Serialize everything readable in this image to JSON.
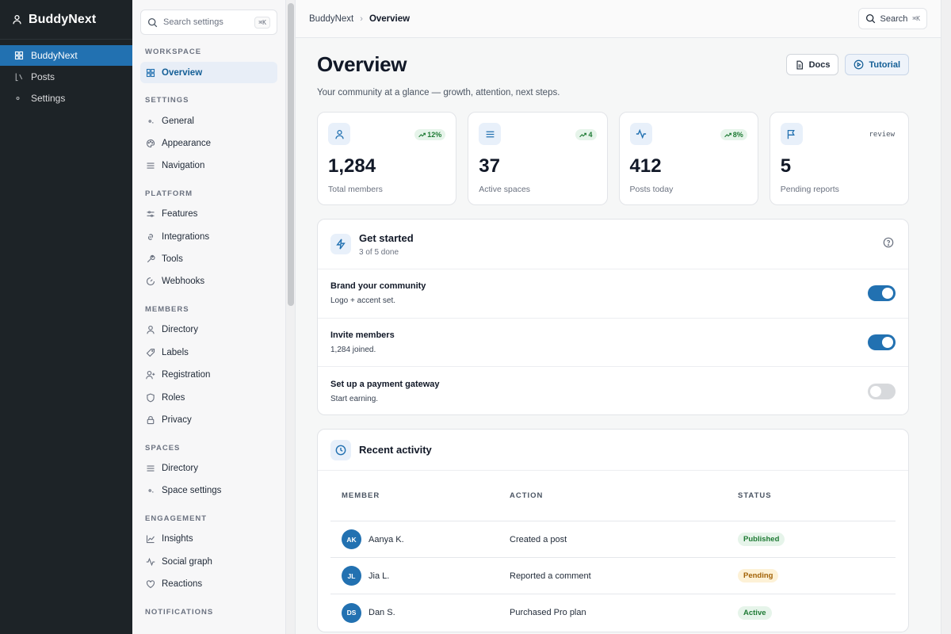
{
  "adminbar": {
    "brand": "BuddyNext",
    "items": [
      {
        "label": "BuddyNext",
        "icon": "grid-icon"
      },
      {
        "label": "Posts",
        "icon": "bracket-icon"
      },
      {
        "label": "Settings",
        "icon": "dot-icon"
      }
    ]
  },
  "settings": {
    "search_placeholder": "Search settings",
    "search_kbd": "⌘K",
    "sections": {
      "workspace": "WORKSPACE",
      "settings": "SETTINGS",
      "platform": "PLATFORM",
      "members": "MEMBERS",
      "spaces": "SPACES",
      "engagement": "ENGAGEMENT",
      "notifications": "NOTIFICATIONS"
    },
    "workspace_items": [
      {
        "label": "Overview"
      }
    ],
    "settings_items": [
      {
        "label": "General"
      },
      {
        "label": "Appearance"
      },
      {
        "label": "Navigation"
      }
    ],
    "platform_items": [
      {
        "label": "Features"
      },
      {
        "label": "Integrations"
      },
      {
        "label": "Tools"
      },
      {
        "label": "Webhooks"
      }
    ],
    "members_items": [
      {
        "label": "Directory"
      },
      {
        "label": "Labels"
      },
      {
        "label": "Registration"
      },
      {
        "label": "Roles"
      },
      {
        "label": "Privacy"
      }
    ],
    "spaces_items": [
      {
        "label": "Directory"
      },
      {
        "label": "Space settings"
      }
    ],
    "engagement_items": [
      {
        "label": "Insights"
      },
      {
        "label": "Social graph"
      },
      {
        "label": "Reactions"
      }
    ]
  },
  "topbar": {
    "crumb_root": "BuddyNext",
    "crumb_current": "Overview",
    "search_label": "Search",
    "search_kbd": "⌘K"
  },
  "page": {
    "title": "Overview",
    "subtitle": "Your community at a glance — growth, attention, next steps.",
    "docs_label": "Docs",
    "tutorial_label": "Tutorial"
  },
  "stats": [
    {
      "value": "1,284",
      "label": "Total members",
      "trend": "12%",
      "icon": "user-icon"
    },
    {
      "value": "37",
      "label": "Active spaces",
      "trend": "4",
      "icon": "list-icon"
    },
    {
      "value": "412",
      "label": "Posts today",
      "trend": "8%",
      "icon": "activity-icon"
    },
    {
      "value": "5",
      "label": "Pending reports",
      "tag": "review",
      "icon": "flag-icon"
    }
  ],
  "get_started": {
    "title": "Get started",
    "progress": "3 of 5 done",
    "tasks": [
      {
        "title": "Brand your community",
        "desc": "Logo + accent set.",
        "enabled": true
      },
      {
        "title": "Invite members",
        "desc": "1,284 joined.",
        "enabled": true
      },
      {
        "title": "Set up a payment gateway",
        "desc": "Start earning.",
        "enabled": false
      }
    ]
  },
  "activity": {
    "title": "Recent activity",
    "columns": {
      "member": "MEMBER",
      "action": "ACTION",
      "status": "STATUS"
    },
    "rows": [
      {
        "initials": "AK",
        "name": "Aanya K.",
        "action": "Created a post",
        "status": "Published",
        "tone": "green"
      },
      {
        "initials": "JL",
        "name": "Jia L.",
        "action": "Reported a comment",
        "status": "Pending",
        "tone": "amber"
      },
      {
        "initials": "DS",
        "name": "Dan S.",
        "action": "Purchased Pro plan",
        "status": "Active",
        "tone": "green"
      }
    ]
  },
  "colors": {
    "accent": "#2271b1",
    "sidebar_dark": "#1d2327",
    "success": "#1e7a34",
    "warning": "#a26207"
  }
}
